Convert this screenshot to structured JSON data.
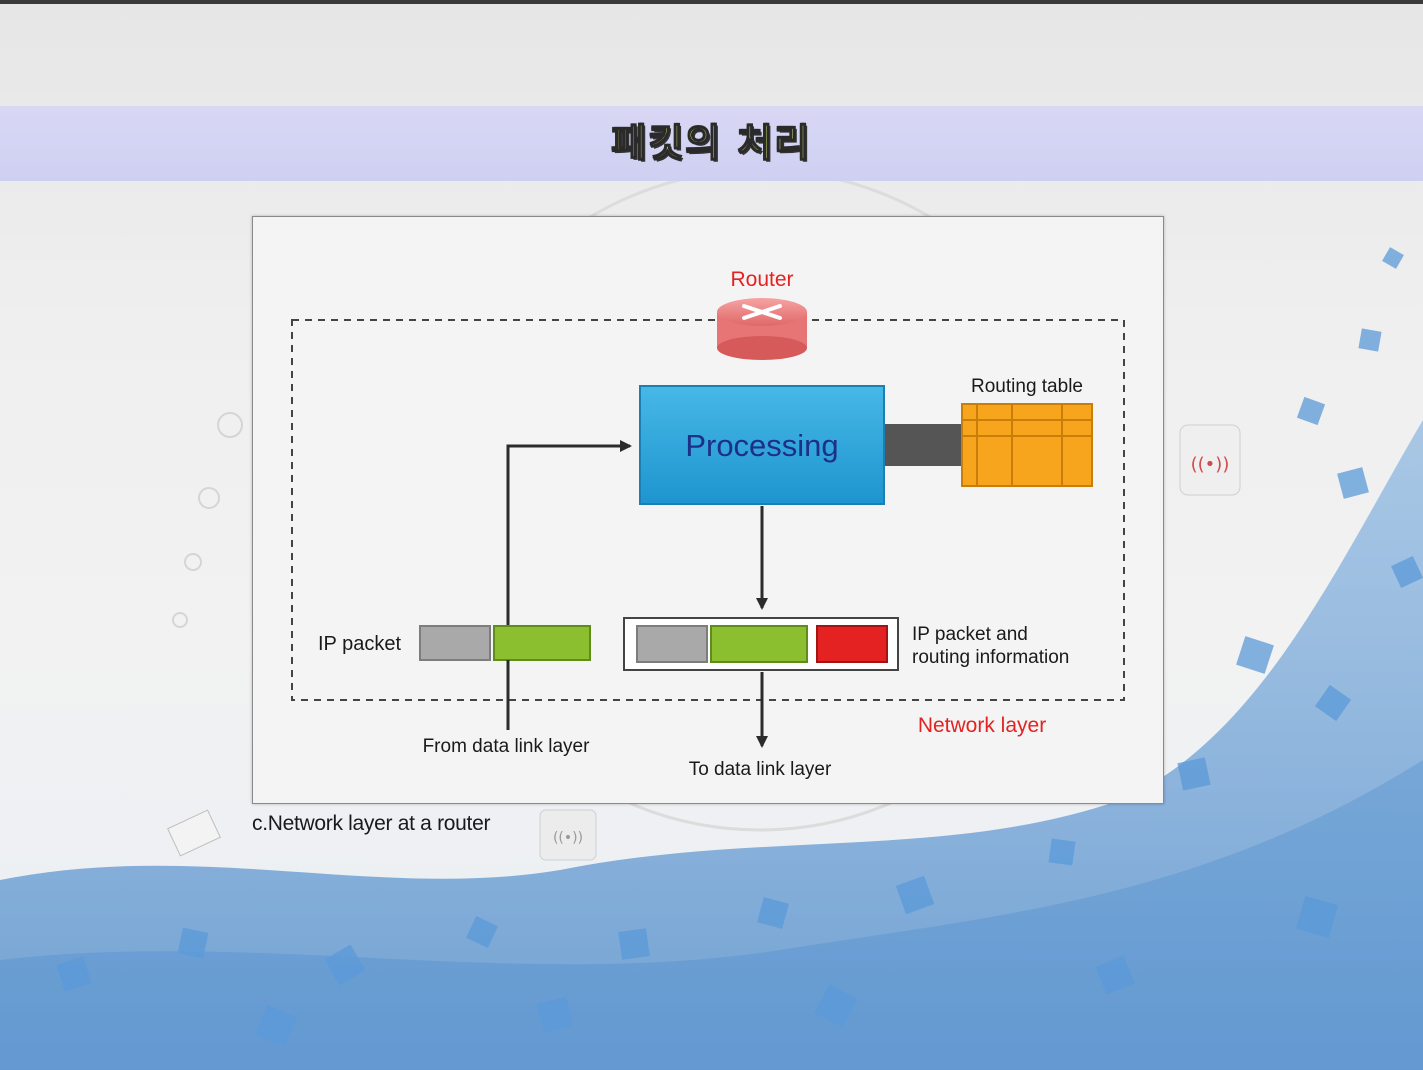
{
  "slide": {
    "title": "패킷의 처리",
    "caption": "c.Network layer at a router"
  },
  "diagram": {
    "router_label": "Router",
    "processing_label": "Processing",
    "routing_table_label": "Routing table",
    "ip_packet_label": "IP packet",
    "ip_packet_routing_label_line1": "IP packet and",
    "ip_packet_routing_label_line2": "routing information",
    "from_label": "From data link layer",
    "to_label": "To data link layer",
    "network_layer_label": "Network layer"
  },
  "colors": {
    "title_band": "#cfcff2",
    "title_text": "#d9e86a",
    "processing_fill": "#2ba4d8",
    "processing_text": "#1d2f86",
    "routing_table_fill": "#f7a51c",
    "router_fill": "#f08080",
    "label_red": "#e52222",
    "packet_gray": "#a9a9a9",
    "packet_green": "#8cbf30",
    "packet_red": "#e52222",
    "connector_gray": "#555555"
  }
}
